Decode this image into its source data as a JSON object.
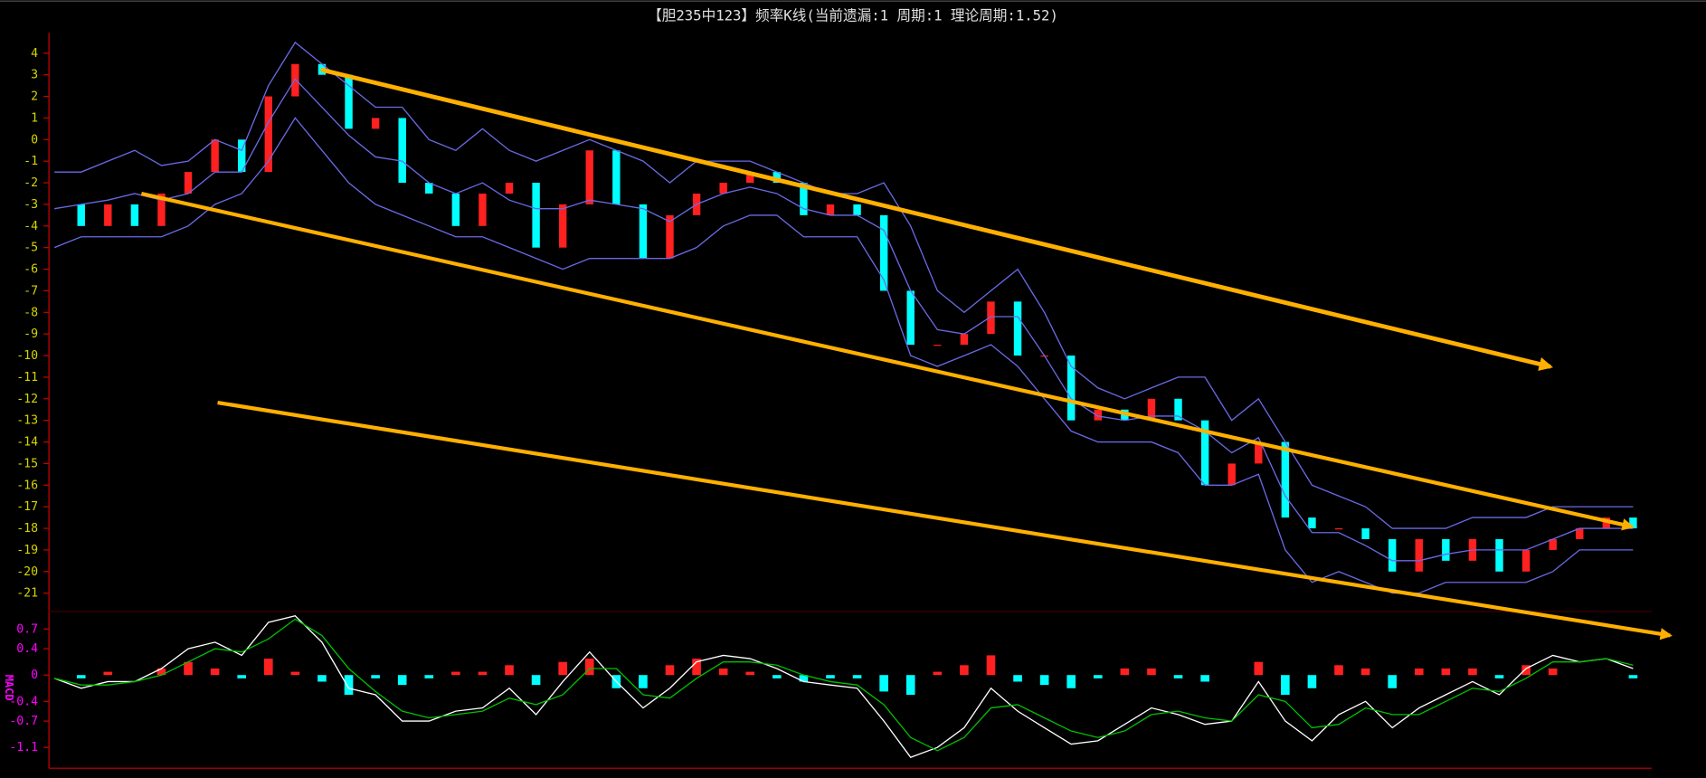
{
  "chart_data": [
    {
      "type": "candlestick",
      "title": "【胆235中123】频率K线(当前遗漏:1 周期:1 理论周期:1.52)",
      "ylim": [
        -21.75,
        4.75
      ],
      "yticks": [
        -21,
        -20,
        -19,
        -18,
        -17,
        -16,
        -15,
        -14,
        -13,
        -12,
        -11,
        -10,
        -9,
        -8,
        -7,
        -6,
        -5,
        -4,
        -3,
        -2,
        -1,
        0,
        1,
        2,
        3,
        4
      ],
      "tick_color": "#d4d400",
      "up_color": "#ff2020",
      "down_color": "#00ffff",
      "close": [
        -3,
        -4,
        -3,
        -4,
        -2.5,
        -1.5,
        0,
        -1.5,
        2,
        3.5,
        3,
        0.5,
        1,
        -2,
        -2.5,
        -4,
        -2.5,
        -2,
        -5,
        -3,
        -0.5,
        -3,
        -5.5,
        -3.5,
        -2.5,
        -2,
        -1.5,
        -2,
        -3.5,
        -3,
        -3.5,
        -7,
        -9.5,
        -9.5,
        -9,
        -7.5,
        -10,
        -10,
        -13,
        -12.5,
        -13,
        -12,
        -13,
        -16,
        -15,
        -14,
        -17.5,
        -18,
        -18,
        -18.5,
        -20,
        -18.5,
        -19.5,
        -18.5,
        -20,
        -19,
        -18.5,
        -18,
        -17.5,
        -18
      ],
      "lines": [
        {
          "color": "#6a6ae6",
          "values": [
            -1.5,
            -1.5,
            -1,
            -0.5,
            -1.2,
            -1,
            0,
            -0.5,
            2.5,
            4.5,
            3.5,
            2.5,
            1.5,
            1.5,
            0,
            -0.5,
            0.5,
            -0.5,
            -1,
            -0.5,
            0,
            -0.5,
            -1,
            -2,
            -1,
            -1,
            -1,
            -1.5,
            -2,
            -2.5,
            -2.5,
            -2,
            -4,
            -7,
            -8,
            -7,
            -6,
            -8,
            -10.5,
            -11.5,
            -12,
            -11.5,
            -11,
            -11,
            -13,
            -12,
            -14,
            -16,
            -16.5,
            -17,
            -18,
            -18,
            -18,
            -17.5,
            -17.5,
            -17.5,
            -17,
            -17,
            -17,
            -17
          ]
        },
        {
          "color": "#6a6ae6",
          "values": [
            -3.2,
            -3,
            -2.8,
            -2.5,
            -2.8,
            -2.5,
            -1.5,
            -1.5,
            0.8,
            2.8,
            1.5,
            0.2,
            -0.8,
            -1,
            -2,
            -2.5,
            -2,
            -2.8,
            -3.2,
            -3.2,
            -2.8,
            -3,
            -3.2,
            -3.8,
            -3,
            -2.5,
            -2.2,
            -2.5,
            -3.2,
            -3.5,
            -3.5,
            -4.2,
            -7,
            -8.8,
            -9,
            -8.2,
            -8.2,
            -10,
            -12,
            -12.8,
            -13,
            -12.8,
            -12.8,
            -13.5,
            -14.5,
            -13.8,
            -16.5,
            -18.2,
            -18.2,
            -18.8,
            -19.5,
            -19.5,
            -19.2,
            -19,
            -19,
            -19,
            -18.5,
            -18,
            -18,
            -18
          ]
        },
        {
          "color": "#6a6ae6",
          "values": [
            -5,
            -4.5,
            -4.5,
            -4.5,
            -4.5,
            -4,
            -3,
            -2.5,
            -1,
            1,
            -0.5,
            -2,
            -3,
            -3.5,
            -4,
            -4.5,
            -4.5,
            -5,
            -5.5,
            -6,
            -5.5,
            -5.5,
            -5.5,
            -5.5,
            -5,
            -4,
            -3.5,
            -3.5,
            -4.5,
            -4.5,
            -4.5,
            -6.5,
            -10,
            -10.5,
            -10,
            -9.5,
            -10.5,
            -12,
            -13.5,
            -14,
            -14,
            -14,
            -14.5,
            -16,
            -16,
            -15.5,
            -19,
            -20.5,
            -20,
            -20.5,
            -21,
            -21,
            -20.5,
            -20.5,
            -20.5,
            -20.5,
            -20,
            -19,
            -19,
            -19
          ]
        }
      ]
    },
    {
      "type": "macd",
      "label": "MACD",
      "ylim": [
        -1.35,
        0.9
      ],
      "yticks": [
        0.7,
        0.4,
        0,
        -0.4,
        -0.7,
        -1.1
      ],
      "tick_color": "#ff00ff",
      "up_color": "#ff2020",
      "down_color": "#00ffff",
      "bars": [
        0,
        -0.05,
        0.05,
        0,
        0.1,
        0.2,
        0.1,
        -0.05,
        0.25,
        0.05,
        -0.1,
        -0.3,
        -0.05,
        -0.15,
        -0.05,
        0.05,
        0.05,
        0.15,
        -0.15,
        0.2,
        0.25,
        -0.2,
        -0.2,
        0.15,
        0.25,
        0.1,
        0.05,
        -0.05,
        -0.1,
        -0.05,
        -0.05,
        -0.25,
        -0.3,
        0.05,
        0.15,
        0.3,
        -0.1,
        -0.15,
        -0.2,
        -0.05,
        0.1,
        0.1,
        -0.05,
        -0.1,
        0,
        0.2,
        -0.3,
        -0.2,
        0.15,
        0.1,
        -0.2,
        0.1,
        0.1,
        0.1,
        -0.05,
        0.15,
        0.1,
        0,
        0,
        -0.05
      ],
      "lines": [
        {
          "color": "#ffffff",
          "values": [
            -0.05,
            -0.2,
            -0.1,
            -0.1,
            0.1,
            0.4,
            0.5,
            0.3,
            0.8,
            0.9,
            0.5,
            -0.2,
            -0.3,
            -0.7,
            -0.7,
            -0.55,
            -0.5,
            -0.2,
            -0.6,
            -0.1,
            0.35,
            -0.1,
            -0.5,
            -0.2,
            0.2,
            0.3,
            0.25,
            0.1,
            -0.1,
            -0.15,
            -0.2,
            -0.7,
            -1.25,
            -1.1,
            -0.8,
            -0.2,
            -0.55,
            -0.8,
            -1.05,
            -1,
            -0.75,
            -0.5,
            -0.6,
            -0.75,
            -0.7,
            -0.1,
            -0.7,
            -1,
            -0.6,
            -0.4,
            -0.8,
            -0.5,
            -0.3,
            -0.1,
            -0.3,
            0.1,
            0.3,
            0.2,
            0.25,
            0.1
          ]
        },
        {
          "color": "#00c000",
          "values": [
            -0.05,
            -0.15,
            -0.15,
            -0.1,
            0,
            0.2,
            0.4,
            0.35,
            0.55,
            0.85,
            0.6,
            0.1,
            -0.25,
            -0.55,
            -0.65,
            -0.6,
            -0.55,
            -0.35,
            -0.45,
            -0.3,
            0.1,
            0.1,
            -0.3,
            -0.35,
            -0.05,
            0.2,
            0.2,
            0.15,
            0,
            -0.1,
            -0.15,
            -0.45,
            -0.95,
            -1.15,
            -0.95,
            -0.5,
            -0.45,
            -0.65,
            -0.85,
            -0.95,
            -0.85,
            -0.6,
            -0.55,
            -0.65,
            -0.7,
            -0.3,
            -0.4,
            -0.8,
            -0.75,
            -0.5,
            -0.6,
            -0.6,
            -0.4,
            -0.2,
            -0.25,
            -0.05,
            0.2,
            0.2,
            0.25,
            0.15
          ]
        }
      ]
    }
  ]
}
